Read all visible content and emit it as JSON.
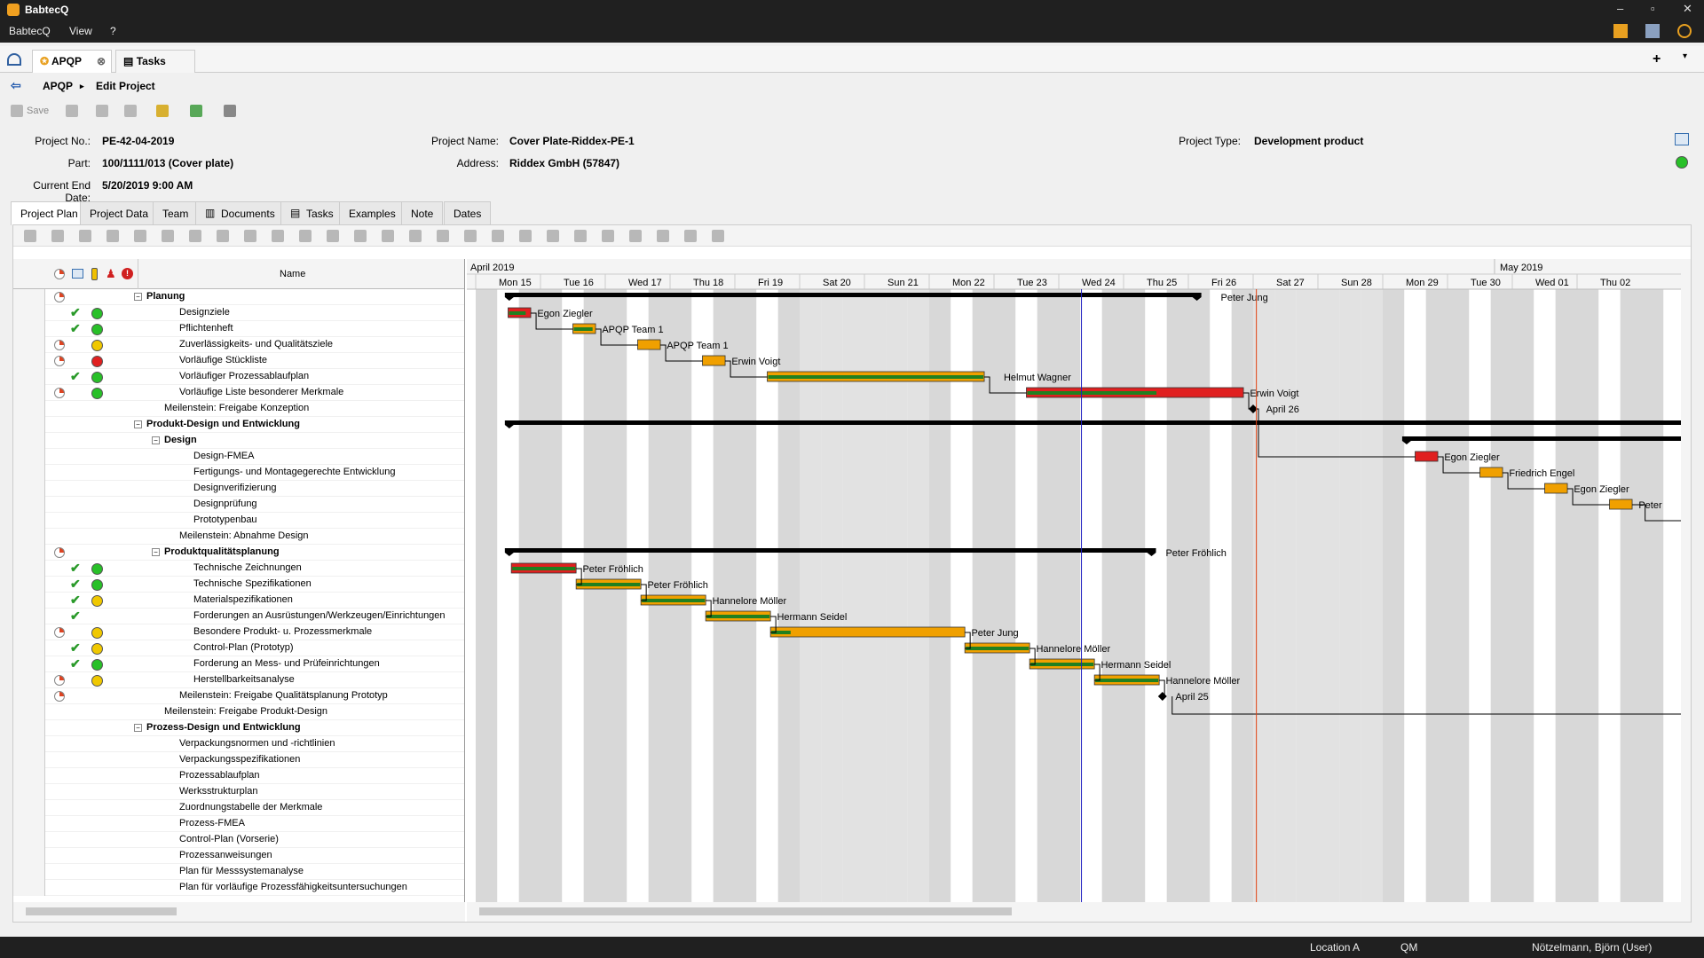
{
  "app": {
    "title": "BabtecQ",
    "menu": [
      "BabtecQ",
      "View",
      "?"
    ]
  },
  "tabs": [
    {
      "label": "APQP"
    },
    {
      "label": "Tasks"
    }
  ],
  "breadcrumb": {
    "root": "APQP",
    "current": "Edit Project"
  },
  "toolbar": {
    "save_label": "Save"
  },
  "project": {
    "no_label": "Project No.:",
    "no": "PE-42-04-2019",
    "part_label": "Part:",
    "part": "100/1111/013 (Cover plate)",
    "end_label": "Current End Date:",
    "end": "5/20/2019 9:00 AM",
    "name_label": "Project Name:",
    "name": "Cover Plate-Riddex-PE-1",
    "address_label": "Address:",
    "address": "Riddex GmbH (57847)",
    "type_label": "Project Type:",
    "type": "Development product"
  },
  "subtabs": [
    "Project Plan",
    "Project Data",
    "Team",
    "Documents",
    "Tasks",
    "Examples",
    "Note",
    "Dates"
  ],
  "grid": {
    "name_header": "Name"
  },
  "months": [
    "April 2019",
    "May 2019"
  ],
  "days": [
    "Mon 15",
    "Tue 16",
    "Wed 17",
    "Thu 18",
    "Fri 19",
    "Sat 20",
    "Sun 21",
    "Mon 22",
    "Tue 23",
    "Wed 24",
    "Thu 25",
    "Fri 26",
    "Sat 27",
    "Sun 28",
    "Mon 29",
    "Tue 30",
    "Wed 01",
    "Thu 02"
  ],
  "rows": [
    {
      "name": "Planung",
      "bold": true,
      "level": 0,
      "tree": "⊟",
      "pie": true
    },
    {
      "name": "Designziele",
      "level": 2,
      "check": true,
      "led": "g"
    },
    {
      "name": "Pflichtenheft",
      "level": 2,
      "check": true,
      "led": "g"
    },
    {
      "name": "Zuverlässigkeits- und Qualitätsziele",
      "level": 2,
      "pie": true,
      "led": "y"
    },
    {
      "name": "Vorläufige Stückliste",
      "level": 2,
      "pie": true,
      "led": "r"
    },
    {
      "name": "Vorläufiger Prozessablaufplan",
      "level": 2,
      "check": true,
      "led": "g"
    },
    {
      "name": "Vorläufige Liste besonderer Merkmale",
      "level": 2,
      "pie": true,
      "led": "g"
    },
    {
      "name": "Meilenstein: Freigabe Konzeption",
      "level": 1
    },
    {
      "name": "Produkt-Design und Entwicklung",
      "bold": true,
      "level": 0,
      "tree": "⊟"
    },
    {
      "name": "Design",
      "bold": true,
      "level": 1,
      "tree": "⊟"
    },
    {
      "name": "Design-FMEA",
      "level": 3
    },
    {
      "name": "Fertigungs- und Montagegerechte Entwicklung",
      "level": 3
    },
    {
      "name": "Designverifizierung",
      "level": 3
    },
    {
      "name": "Designprüfung",
      "level": 3
    },
    {
      "name": "Prototypenbau",
      "level": 3
    },
    {
      "name": "Meilenstein: Abnahme Design",
      "level": 2
    },
    {
      "name": "Produktqualitätsplanung",
      "bold": true,
      "level": 1,
      "tree": "⊟",
      "pie": true
    },
    {
      "name": "Technische Zeichnungen",
      "level": 3,
      "check": true,
      "led": "g"
    },
    {
      "name": "Technische Spezifikationen",
      "level": 3,
      "check": true,
      "led": "g"
    },
    {
      "name": "Materialspezifikationen",
      "level": 3,
      "check": true,
      "led": "y"
    },
    {
      "name": "Forderungen an Ausrüstungen/Werkzeugen/Einrichtungen",
      "level": 3,
      "check": true
    },
    {
      "name": "Besondere Produkt- u. Prozessmerkmale",
      "level": 3,
      "pie": true,
      "led": "y"
    },
    {
      "name": "Control-Plan (Prototyp)",
      "level": 3,
      "check": true,
      "led": "y"
    },
    {
      "name": "Forderung an Mess- und Prüfeinrichtungen",
      "level": 3,
      "check": true,
      "led": "g"
    },
    {
      "name": "Herstellbarkeitsanalyse",
      "level": 3,
      "pie": true,
      "led": "y"
    },
    {
      "name": "Meilenstein: Freigabe Qualitätsplanung Prototyp",
      "level": 2,
      "pie": true
    },
    {
      "name": "Meilenstein: Freigabe Produkt-Design",
      "level": 1
    },
    {
      "name": "Prozess-Design und Entwicklung",
      "bold": true,
      "level": 0,
      "tree": "⊟"
    },
    {
      "name": "Verpackungsnormen und -richtlinien",
      "level": 2
    },
    {
      "name": "Verpackungsspezifikationen",
      "level": 2
    },
    {
      "name": "Prozessablaufplan",
      "level": 2
    },
    {
      "name": "Werksstrukturplan",
      "level": 2
    },
    {
      "name": "Zuordnungstabelle der Merkmale",
      "level": 2
    },
    {
      "name": "Prozess-FMEA",
      "level": 2
    },
    {
      "name": "Control-Plan (Vorserie)",
      "level": 2
    },
    {
      "name": "Prozessanweisungen",
      "level": 2
    },
    {
      "name": "Plan für Messsystemanalyse",
      "level": 2
    },
    {
      "name": "Plan für vorläufige Prozessfähigkeitsuntersuchungen",
      "level": 2
    }
  ],
  "gantt": {
    "labels": [
      "Peter Jung",
      "Egon Ziegler",
      "APQP Team 1",
      "APQP Team 1",
      "Erwin Voigt",
      "Helmut Wagner",
      "Erwin Voigt",
      "April 26",
      "Egon Ziegler",
      "Friedrich Engel",
      "Egon Ziegler",
      "Peter",
      "Peter Fröhlich",
      "Peter Fröhlich",
      "Peter Fröhlich",
      "Hannelore Möller",
      "Hermann Seidel",
      "Peter Jung",
      "Hannelore Möller",
      "Hermann Seidel",
      "Hannelore Möller",
      "April 25"
    ]
  },
  "status": {
    "location": "Location A",
    "module": "QM",
    "user": "Nötzelmann, Björn (User)"
  }
}
